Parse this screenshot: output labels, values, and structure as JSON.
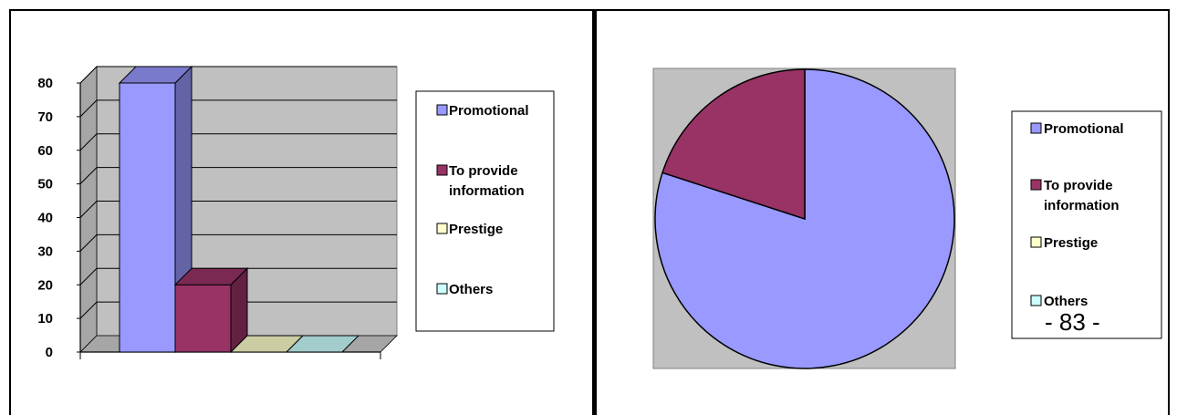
{
  "chart_data": [
    {
      "type": "bar",
      "categories": [
        "Promotional",
        "To provide information",
        "Prestige",
        "Others"
      ],
      "values": [
        80,
        20,
        0,
        0
      ],
      "ylim": [
        0,
        80
      ],
      "yticks": [
        0,
        10,
        20,
        30,
        40,
        50,
        60,
        70,
        80
      ],
      "grid": true,
      "legend": {
        "position": "right",
        "entries": [
          {
            "line1": "Promotional",
            "line2": ""
          },
          {
            "line1": "To provide",
            "line2": "information"
          },
          {
            "line1": "Prestige",
            "line2": ""
          },
          {
            "line1": "Others",
            "line2": ""
          }
        ]
      },
      "colors": [
        "#9999ff",
        "#993366",
        "#ffffcc",
        "#ccffff"
      ]
    },
    {
      "type": "pie",
      "categories": [
        "Promotional",
        "To provide information",
        "Prestige",
        "Others"
      ],
      "values": [
        80,
        20,
        0,
        0
      ],
      "legend": {
        "position": "right",
        "entries": [
          {
            "line1": "Promotional",
            "line2": ""
          },
          {
            "line1": "To provide",
            "line2": "information"
          },
          {
            "line1": "Prestige",
            "line2": ""
          },
          {
            "line1": "Others",
            "line2": ""
          }
        ]
      },
      "colors": [
        "#9999ff",
        "#993366",
        "#ffffcc",
        "#ccffff"
      ]
    }
  ],
  "page_number": "- 83 -"
}
